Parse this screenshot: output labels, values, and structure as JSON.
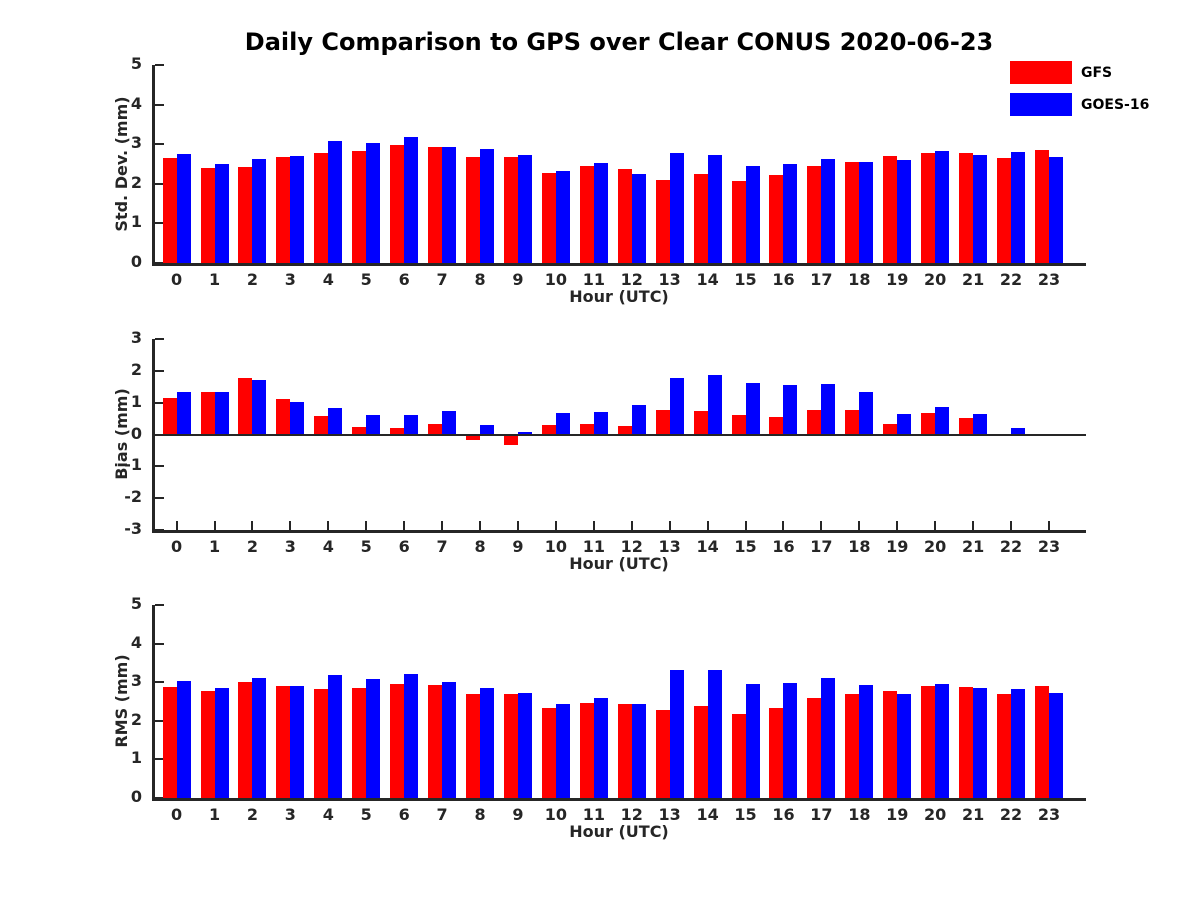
{
  "title": "Daily Comparison to GPS over Clear CONUS 2020-06-23",
  "legend": {
    "items": [
      {
        "label": "GFS",
        "color": "#ff0000"
      },
      {
        "label": "GOES-16",
        "color": "#0000ff"
      }
    ]
  },
  "colors": {
    "gfs": "#ff0000",
    "goes16": "#0000ff",
    "axis": "#262626"
  },
  "chart_data": [
    {
      "type": "bar",
      "panel": "std-dev",
      "ylabel": "Std. Dev. (mm)",
      "xlabel": "Hour (UTC)",
      "ylim": [
        0,
        5
      ],
      "yticks": [
        0,
        1,
        2,
        3,
        4,
        5
      ],
      "categories": [
        "0",
        "1",
        "2",
        "3",
        "4",
        "5",
        "6",
        "7",
        "8",
        "9",
        "10",
        "11",
        "12",
        "13",
        "14",
        "15",
        "16",
        "17",
        "18",
        "19",
        "20",
        "21",
        "22",
        "23"
      ],
      "series": [
        {
          "name": "GFS",
          "color": "#ff0000",
          "values": [
            2.65,
            2.4,
            2.42,
            2.68,
            2.78,
            2.83,
            2.97,
            2.94,
            2.68,
            2.68,
            2.28,
            2.44,
            2.38,
            2.1,
            2.25,
            2.07,
            2.23,
            2.45,
            2.55,
            2.71,
            2.78,
            2.77,
            2.64,
            2.85
          ]
        },
        {
          "name": "GOES-16",
          "color": "#0000ff",
          "values": [
            2.76,
            2.5,
            2.62,
            2.7,
            3.08,
            3.03,
            3.18,
            2.94,
            2.87,
            2.72,
            2.33,
            2.52,
            2.24,
            2.78,
            2.73,
            2.46,
            2.51,
            2.63,
            2.55,
            2.61,
            2.82,
            2.73,
            2.8,
            2.68
          ]
        }
      ]
    },
    {
      "type": "bar",
      "panel": "bias",
      "ylabel": "Bias (mm)",
      "xlabel": "Hour (UTC)",
      "ylim": [
        -3,
        3
      ],
      "yticks": [
        -3,
        -2,
        -1,
        0,
        1,
        2,
        3
      ],
      "categories": [
        "0",
        "1",
        "2",
        "3",
        "4",
        "5",
        "6",
        "7",
        "8",
        "9",
        "10",
        "11",
        "12",
        "13",
        "14",
        "15",
        "16",
        "17",
        "18",
        "19",
        "20",
        "21",
        "22",
        "23"
      ],
      "series": [
        {
          "name": "GFS",
          "color": "#ff0000",
          "values": [
            1.15,
            1.35,
            1.78,
            1.13,
            0.57,
            0.25,
            0.2,
            0.33,
            -0.16,
            -0.32,
            0.29,
            0.32,
            0.27,
            0.77,
            0.75,
            0.62,
            0.56,
            0.77,
            0.77,
            0.34,
            0.68,
            0.53,
            0.03,
            0.03
          ]
        },
        {
          "name": "GOES-16",
          "color": "#0000ff",
          "values": [
            1.34,
            1.35,
            1.72,
            1.03,
            0.82,
            0.62,
            0.62,
            0.74,
            0.29,
            0.07,
            0.66,
            0.7,
            0.93,
            1.78,
            1.87,
            1.63,
            1.55,
            1.59,
            1.33,
            0.63,
            0.86,
            0.65,
            0.19,
            0.01
          ]
        }
      ]
    },
    {
      "type": "bar",
      "panel": "rms",
      "ylabel": "RMS (mm)",
      "xlabel": "Hour (UTC)",
      "ylim": [
        0,
        5
      ],
      "yticks": [
        0,
        1,
        2,
        3,
        4,
        5
      ],
      "categories": [
        "0",
        "1",
        "2",
        "3",
        "4",
        "5",
        "6",
        "7",
        "8",
        "9",
        "10",
        "11",
        "12",
        "13",
        "14",
        "15",
        "16",
        "17",
        "18",
        "19",
        "20",
        "21",
        "22",
        "23"
      ],
      "series": [
        {
          "name": "GFS",
          "color": "#ff0000",
          "values": [
            2.87,
            2.76,
            3.0,
            2.9,
            2.82,
            2.85,
            2.96,
            2.94,
            2.7,
            2.69,
            2.34,
            2.45,
            2.44,
            2.27,
            2.39,
            2.18,
            2.33,
            2.6,
            2.7,
            2.76,
            2.9,
            2.87,
            2.7,
            2.9
          ]
        },
        {
          "name": "GOES-16",
          "color": "#0000ff",
          "values": [
            3.04,
            2.84,
            3.12,
            2.9,
            3.18,
            3.07,
            3.22,
            3.01,
            2.86,
            2.73,
            2.43,
            2.6,
            2.43,
            3.32,
            3.32,
            2.95,
            2.99,
            3.1,
            2.92,
            2.7,
            2.96,
            2.85,
            2.82,
            2.73
          ]
        }
      ]
    }
  ]
}
